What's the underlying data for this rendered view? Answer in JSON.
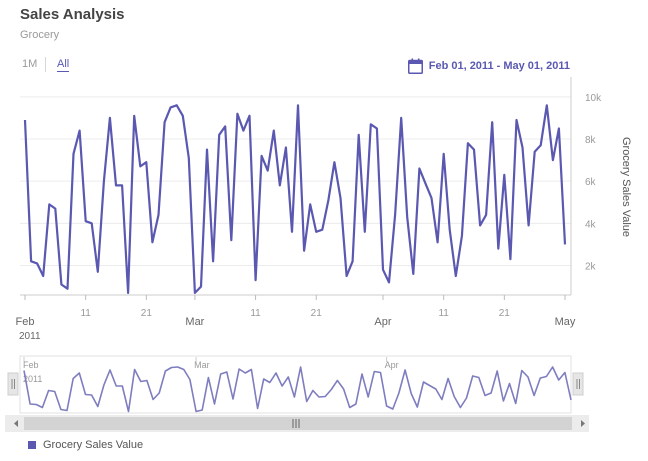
{
  "header": {
    "title": "Sales Analysis",
    "subtitle": "Grocery"
  },
  "range_selector": {
    "one_month": "1M",
    "all": "All",
    "selected": "All"
  },
  "date_range_label": "Feb 01, 2011 - May 01, 2011",
  "legend_label": "Grocery Sales Value",
  "colors": {
    "series": "#5a58b0",
    "navigator_line": "#7e7dbf",
    "grid": "#ececec",
    "axis_text": "#999999"
  },
  "icons": {
    "calendar": "calendar-icon",
    "navigator_left_handle": "grip-handle-icon",
    "navigator_right_handle": "grip-handle-icon",
    "scroll_left": "triangle-left-icon",
    "scroll_right": "triangle-right-icon",
    "scroll_thumb": "grip-handle-icon"
  },
  "chart_data": {
    "type": "line",
    "ylabel": "Grocery Sales Value",
    "ylim": [
      600,
      10800
    ],
    "yticks": [
      2000,
      4000,
      6000,
      8000,
      10000
    ],
    "ytick_labels": [
      "2k",
      "4k",
      "6k",
      "8k",
      "10k"
    ],
    "x_start": "2011-02-01",
    "x_end": "2011-05-01",
    "xticks": [
      {
        "date": "2011-02-01",
        "label": "Feb",
        "sub": "2011",
        "major": true
      },
      {
        "date": "2011-02-11",
        "label": "11",
        "sub": "",
        "major": false
      },
      {
        "date": "2011-02-21",
        "label": "21",
        "sub": "",
        "major": false
      },
      {
        "date": "2011-03-01",
        "label": "Mar",
        "sub": "",
        "major": true
      },
      {
        "date": "2011-03-11",
        "label": "11",
        "sub": "",
        "major": false
      },
      {
        "date": "2011-03-21",
        "label": "21",
        "sub": "",
        "major": false
      },
      {
        "date": "2011-04-01",
        "label": "Apr",
        "sub": "",
        "major": true
      },
      {
        "date": "2011-04-11",
        "label": "11",
        "sub": "",
        "major": false
      },
      {
        "date": "2011-04-21",
        "label": "21",
        "sub": "",
        "major": false
      },
      {
        "date": "2011-05-01",
        "label": "May",
        "sub": "",
        "major": true
      }
    ],
    "navigator_labels": [
      {
        "date": "2011-02-01",
        "label": "Feb",
        "sub": "2011"
      },
      {
        "date": "2011-03-01",
        "label": "Mar",
        "sub": ""
      },
      {
        "date": "2011-04-01",
        "label": "Apr",
        "sub": ""
      }
    ],
    "series": [
      {
        "name": "Grocery Sales Value",
        "points": [
          [
            "2011-02-01",
            8900
          ],
          [
            "2011-02-02",
            2200
          ],
          [
            "2011-02-03",
            2100
          ],
          [
            "2011-02-04",
            1500
          ],
          [
            "2011-02-05",
            4900
          ],
          [
            "2011-02-06",
            4700
          ],
          [
            "2011-02-07",
            1100
          ],
          [
            "2011-02-08",
            900
          ],
          [
            "2011-02-09",
            7300
          ],
          [
            "2011-02-10",
            8400
          ],
          [
            "2011-02-11",
            4100
          ],
          [
            "2011-02-12",
            4000
          ],
          [
            "2011-02-13",
            1700
          ],
          [
            "2011-02-14",
            6000
          ],
          [
            "2011-02-15",
            9000
          ],
          [
            "2011-02-16",
            5800
          ],
          [
            "2011-02-17",
            5800
          ],
          [
            "2011-02-18",
            700
          ],
          [
            "2011-02-19",
            9100
          ],
          [
            "2011-02-20",
            6700
          ],
          [
            "2011-02-21",
            6900
          ],
          [
            "2011-02-22",
            3100
          ],
          [
            "2011-02-23",
            4400
          ],
          [
            "2011-02-24",
            8800
          ],
          [
            "2011-02-25",
            9500
          ],
          [
            "2011-02-26",
            9600
          ],
          [
            "2011-02-27",
            9100
          ],
          [
            "2011-02-28",
            7100
          ],
          [
            "2011-03-01",
            700
          ],
          [
            "2011-03-02",
            1000
          ],
          [
            "2011-03-03",
            7500
          ],
          [
            "2011-03-04",
            2200
          ],
          [
            "2011-03-05",
            8200
          ],
          [
            "2011-03-06",
            8600
          ],
          [
            "2011-03-07",
            3200
          ],
          [
            "2011-03-08",
            9200
          ],
          [
            "2011-03-09",
            8400
          ],
          [
            "2011-03-10",
            9100
          ],
          [
            "2011-03-11",
            1300
          ],
          [
            "2011-03-12",
            7200
          ],
          [
            "2011-03-13",
            6500
          ],
          [
            "2011-03-14",
            8400
          ],
          [
            "2011-03-15",
            5800
          ],
          [
            "2011-03-16",
            7600
          ],
          [
            "2011-03-17",
            3600
          ],
          [
            "2011-03-18",
            9600
          ],
          [
            "2011-03-19",
            2700
          ],
          [
            "2011-03-20",
            4900
          ],
          [
            "2011-03-21",
            3600
          ],
          [
            "2011-03-22",
            3700
          ],
          [
            "2011-03-23",
            5100
          ],
          [
            "2011-03-24",
            6900
          ],
          [
            "2011-03-25",
            5200
          ],
          [
            "2011-03-26",
            1500
          ],
          [
            "2011-03-27",
            2200
          ],
          [
            "2011-03-28",
            8200
          ],
          [
            "2011-03-29",
            3600
          ],
          [
            "2011-03-30",
            8700
          ],
          [
            "2011-03-31",
            8500
          ],
          [
            "2011-04-01",
            1800
          ],
          [
            "2011-04-02",
            1200
          ],
          [
            "2011-04-03",
            4400
          ],
          [
            "2011-04-04",
            9000
          ],
          [
            "2011-04-05",
            4300
          ],
          [
            "2011-04-06",
            1600
          ],
          [
            "2011-04-07",
            6600
          ],
          [
            "2011-04-08",
            5900
          ],
          [
            "2011-04-09",
            5200
          ],
          [
            "2011-04-10",
            3100
          ],
          [
            "2011-04-11",
            7300
          ],
          [
            "2011-04-12",
            3700
          ],
          [
            "2011-04-13",
            1500
          ],
          [
            "2011-04-14",
            3400
          ],
          [
            "2011-04-15",
            7800
          ],
          [
            "2011-04-16",
            7500
          ],
          [
            "2011-04-17",
            3900
          ],
          [
            "2011-04-18",
            4400
          ],
          [
            "2011-04-19",
            8800
          ],
          [
            "2011-04-20",
            2800
          ],
          [
            "2011-04-21",
            6300
          ],
          [
            "2011-04-22",
            2300
          ],
          [
            "2011-04-23",
            8900
          ],
          [
            "2011-04-24",
            7600
          ],
          [
            "2011-04-25",
            3900
          ],
          [
            "2011-04-26",
            7400
          ],
          [
            "2011-04-27",
            7700
          ],
          [
            "2011-04-28",
            9600
          ],
          [
            "2011-04-29",
            7000
          ],
          [
            "2011-04-30",
            8500
          ],
          [
            "2011-05-01",
            3000
          ]
        ]
      }
    ],
    "grid": true,
    "legend_position": "bottom-left"
  }
}
